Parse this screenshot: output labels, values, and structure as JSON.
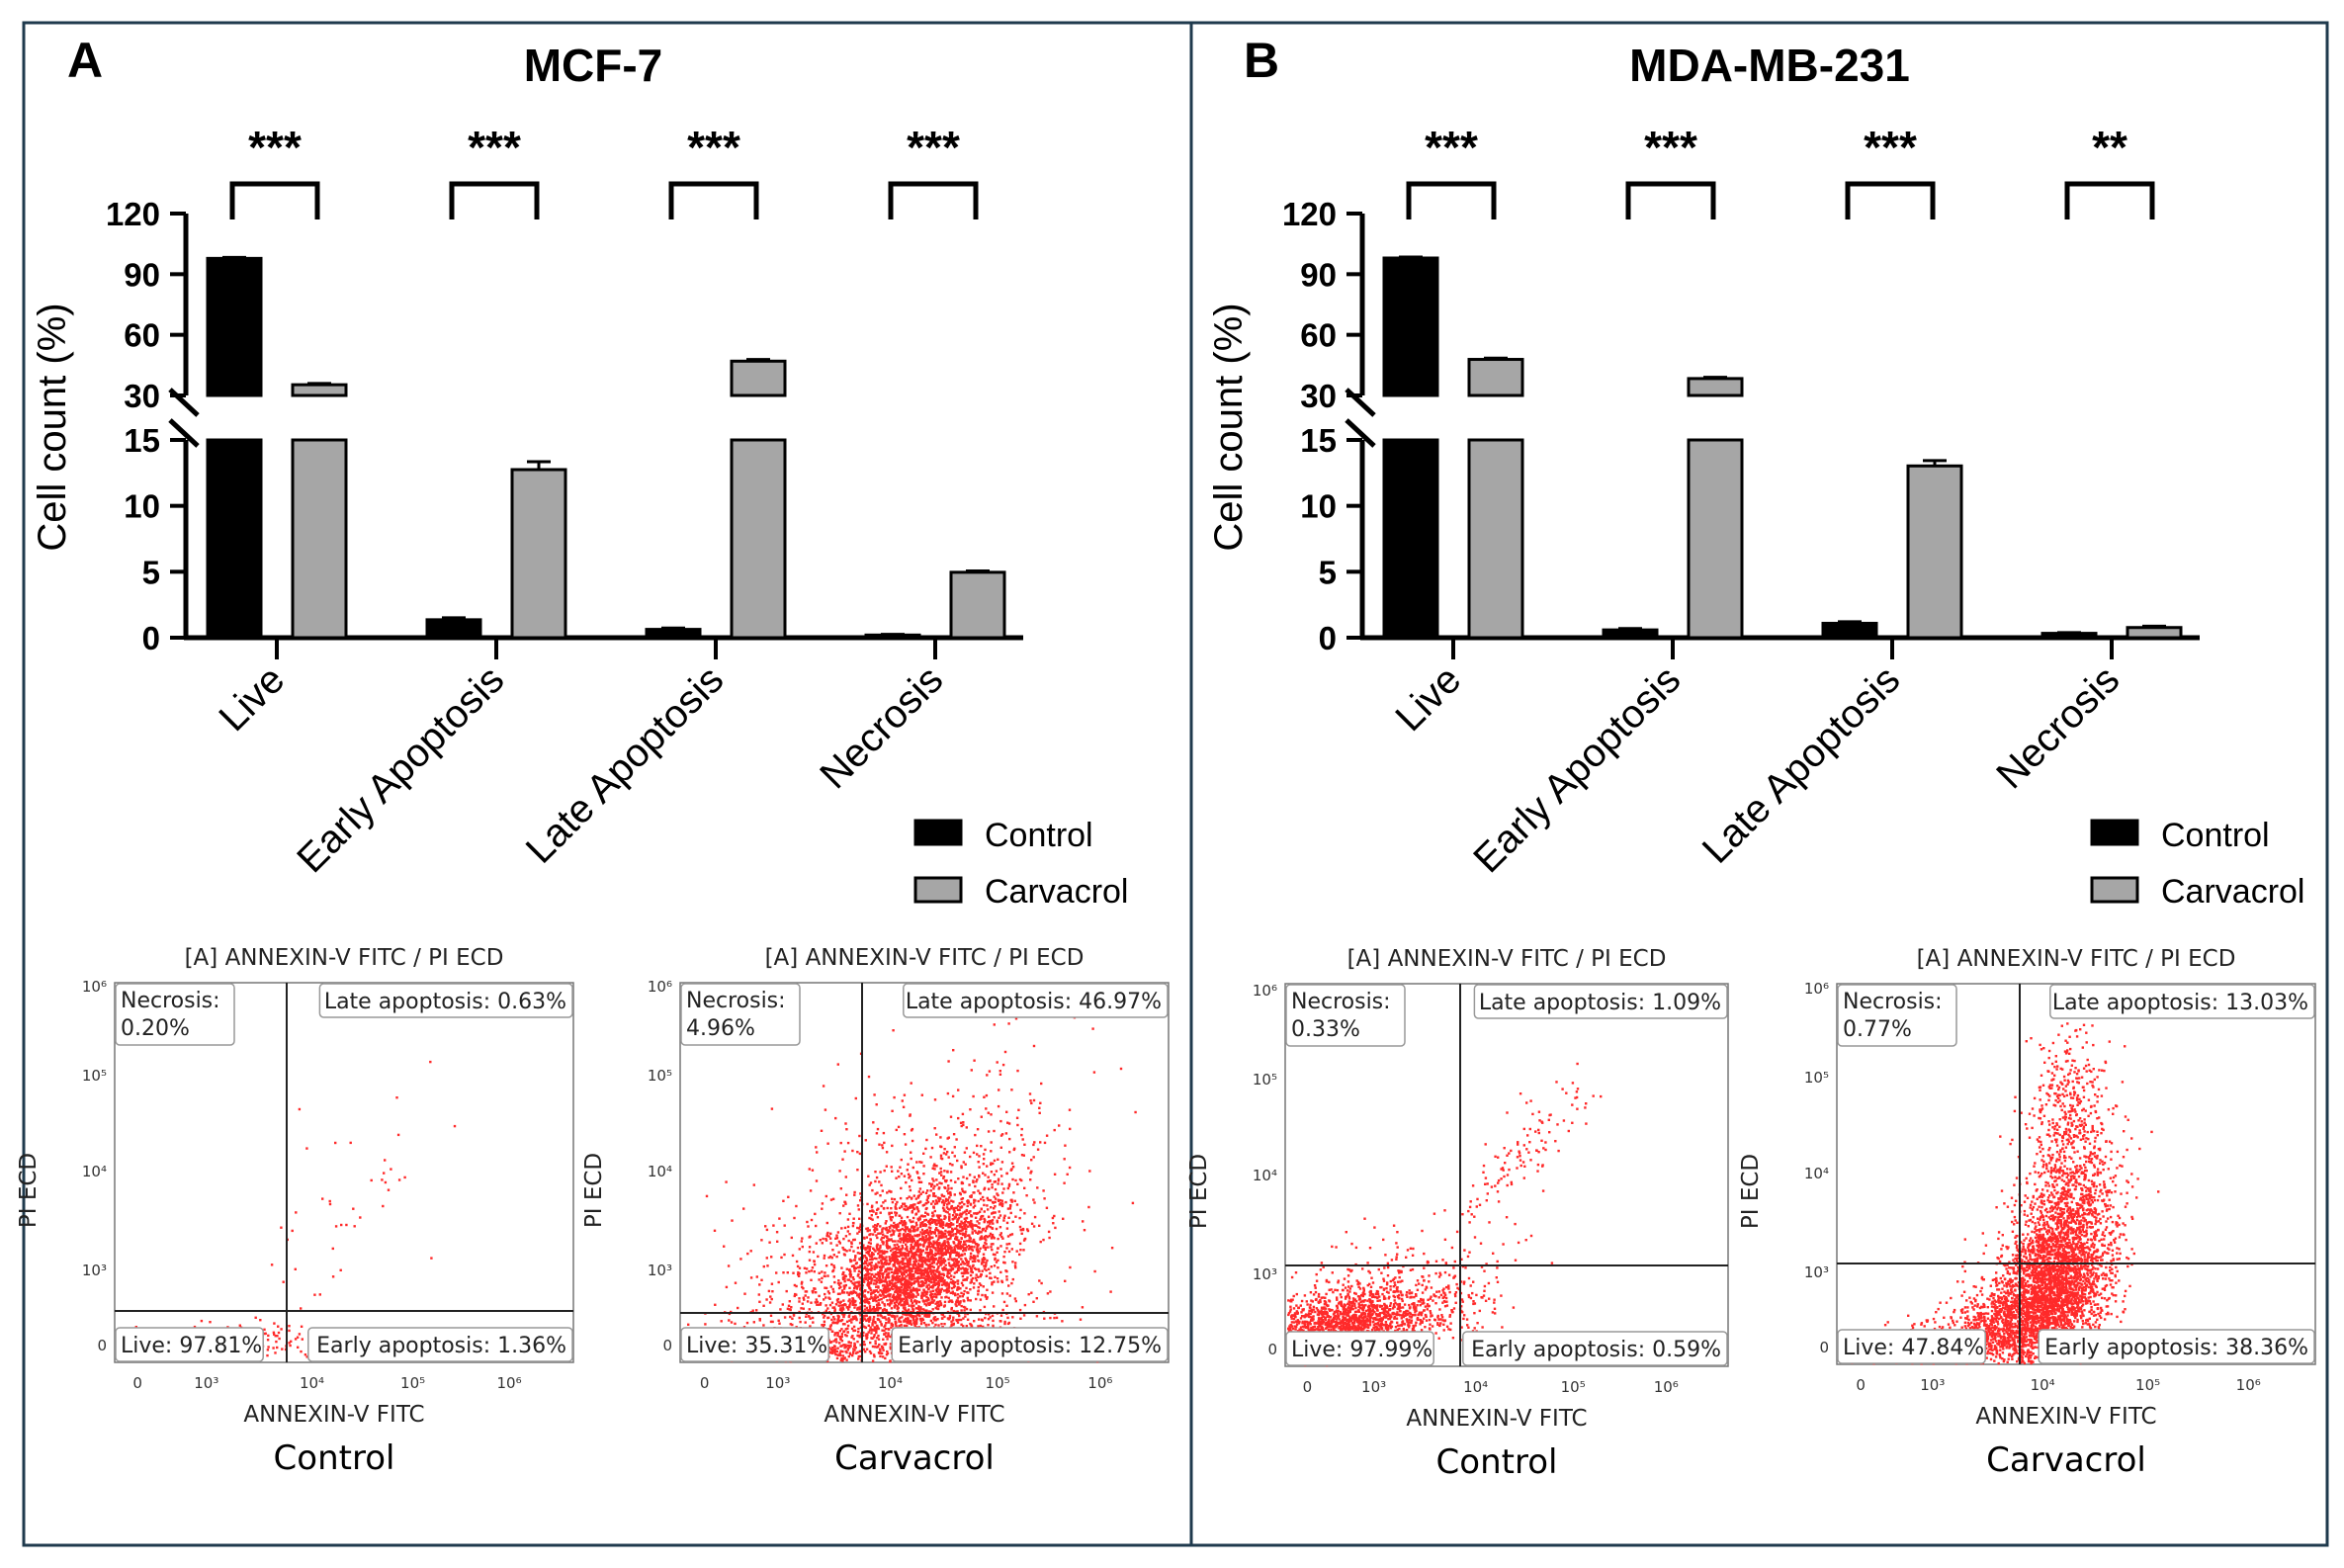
{
  "panels": [
    {
      "letter": "A",
      "title": "MCF-7",
      "ylabel": "Cell count (%)",
      "upper_ticks": [
        "120",
        "90",
        "60",
        "30"
      ],
      "lower_ticks": [
        "15",
        "10",
        "5",
        "0"
      ],
      "categories": [
        "Live",
        "Early Apoptosis",
        "Late Apoptosis",
        "Necrosis"
      ],
      "significance": [
        "***",
        "***",
        "***",
        "***"
      ],
      "legend": [
        "Control",
        "Carvacrol"
      ],
      "flow": [
        {
          "title": "[A] ANNEXIN-V FITC / PI ECD",
          "xlabel": "ANNEXIN-V FITC",
          "ylabel": "PI ECD",
          "caption": "Control",
          "q_necrosis": [
            "Necrosis:",
            "0.20%"
          ],
          "q_late": "Late apoptosis: 0.63%",
          "q_live": "Live: 97.81%",
          "q_early": "Early apoptosis: 1.36%"
        },
        {
          "title": "[A] ANNEXIN-V FITC / PI ECD",
          "xlabel": "ANNEXIN-V FITC",
          "ylabel": "PI ECD",
          "caption": "Carvacrol",
          "q_necrosis": [
            "Necrosis:",
            "4.96%"
          ],
          "q_late": "Late apoptosis: 46.97%",
          "q_live": "Live: 35.31%",
          "q_early": "Early apoptosis: 12.75%"
        }
      ]
    },
    {
      "letter": "B",
      "title": "MDA-MB-231",
      "ylabel": "Cell count (%)",
      "upper_ticks": [
        "120",
        "90",
        "60",
        "30"
      ],
      "lower_ticks": [
        "15",
        "10",
        "5",
        "0"
      ],
      "categories": [
        "Live",
        "Early Apoptosis",
        "Late Apoptosis",
        "Necrosis"
      ],
      "significance": [
        "***",
        "***",
        "***",
        "**"
      ],
      "legend": [
        "Control",
        "Carvacrol"
      ],
      "flow": [
        {
          "title": "[A] ANNEXIN-V FITC / PI ECD",
          "xlabel": "ANNEXIN-V FITC",
          "ylabel": "PI ECD",
          "caption": "Control",
          "q_necrosis": [
            "Necrosis:",
            "0.33%"
          ],
          "q_late": "Late apoptosis: 1.09%",
          "q_live": "Live: 97.99%",
          "q_early": "Early apoptosis: 0.59%"
        },
        {
          "title": "[A] ANNEXIN-V FITC / PI ECD",
          "xlabel": "ANNEXIN-V FITC",
          "ylabel": "PI ECD",
          "caption": "Carvacrol",
          "q_necrosis": [
            "Necrosis:",
            "0.77%"
          ],
          "q_late": "Late apoptosis: 13.03%",
          "q_live": "Live: 47.84%",
          "q_early": "Early apoptosis: 38.36%"
        }
      ]
    }
  ],
  "flow_x_ticks": [
    "0",
    "10³",
    "10⁴",
    "10⁵",
    "10⁶"
  ],
  "flow_y_ticks": [
    "0",
    "10³",
    "10⁴",
    "10⁵",
    "10⁶"
  ],
  "colors": {
    "control": "#000000",
    "carvacrol": "#a6a6a6",
    "dots": "#ff2a2a",
    "border": "#1f3a4d"
  },
  "chart_data": [
    {
      "type": "bar",
      "title": "MCF-7",
      "ylabel": "Cell count (%)",
      "xlabel": "",
      "categories": [
        "Live",
        "Early Apoptosis",
        "Late Apoptosis",
        "Necrosis"
      ],
      "series": [
        {
          "name": "Control",
          "values": [
            97.81,
            1.36,
            0.63,
            0.2
          ],
          "errors": [
            0.5,
            0.15,
            0.1,
            0.05
          ]
        },
        {
          "name": "Carvacrol",
          "values": [
            35.31,
            12.75,
            46.97,
            4.96
          ],
          "errors": [
            0.6,
            0.6,
            0.8,
            0.1
          ]
        }
      ],
      "axis_break": [
        15,
        30
      ],
      "ylim": [
        0,
        120
      ]
    },
    {
      "type": "bar",
      "title": "MDA-MB-231",
      "ylabel": "Cell count (%)",
      "xlabel": "",
      "categories": [
        "Live",
        "Early Apoptosis",
        "Late Apoptosis",
        "Necrosis"
      ],
      "series": [
        {
          "name": "Control",
          "values": [
            97.99,
            0.59,
            1.09,
            0.33
          ],
          "errors": [
            0.5,
            0.1,
            0.12,
            0.05
          ]
        },
        {
          "name": "Carvacrol",
          "values": [
            47.84,
            38.36,
            13.03,
            0.77
          ],
          "errors": [
            0.6,
            0.6,
            0.4,
            0.1
          ]
        }
      ],
      "axis_break": [
        15,
        30
      ],
      "ylim": [
        0,
        120
      ]
    }
  ]
}
